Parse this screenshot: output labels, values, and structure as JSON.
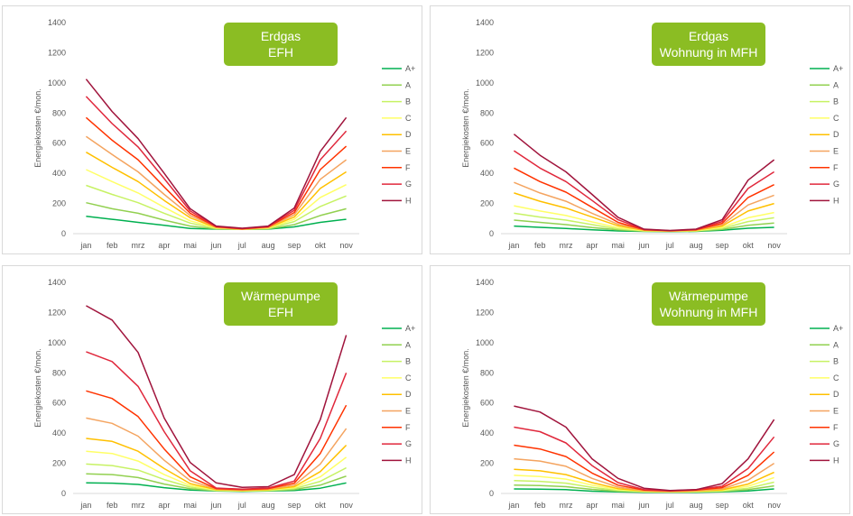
{
  "chart_data": [
    {
      "type": "line",
      "title": "Erdgas\nEFH",
      "ylabel": "Energiekosten €/mon.",
      "ylim": [
        0,
        1400
      ],
      "yticks": [
        0,
        200,
        400,
        600,
        800,
        1000,
        1200,
        1400
      ],
      "categories": [
        "jan",
        "feb",
        "mrz",
        "apr",
        "mai",
        "jun",
        "jul",
        "aug",
        "sep",
        "okt",
        "nov"
      ],
      "legend": "right",
      "series": [
        {
          "name": "A+",
          "color": "#00b050",
          "values": [
            115,
            95,
            75,
            55,
            35,
            30,
            28,
            30,
            45,
            75,
            95
          ]
        },
        {
          "name": "A",
          "color": "#92d050",
          "values": [
            205,
            165,
            135,
            90,
            50,
            32,
            28,
            32,
            60,
            120,
            165
          ]
        },
        {
          "name": "B",
          "color": "#c7f264",
          "values": [
            320,
            260,
            205,
            135,
            70,
            35,
            28,
            35,
            80,
            180,
            250
          ]
        },
        {
          "name": "C",
          "color": "#ffff66",
          "values": [
            425,
            345,
            270,
            175,
            85,
            38,
            28,
            38,
            95,
            240,
            325
          ]
        },
        {
          "name": "D",
          "color": "#ffc000",
          "values": [
            540,
            440,
            345,
            220,
            105,
            40,
            30,
            40,
            110,
            300,
            410
          ]
        },
        {
          "name": "E",
          "color": "#f4a460",
          "values": [
            645,
            525,
            410,
            260,
            120,
            42,
            30,
            42,
            125,
            360,
            490
          ]
        },
        {
          "name": "F",
          "color": "#ff3300",
          "values": [
            770,
            620,
            490,
            310,
            135,
            45,
            32,
            45,
            140,
            425,
            580
          ]
        },
        {
          "name": "G",
          "color": "#e0283c",
          "values": [
            910,
            730,
            575,
            365,
            150,
            48,
            34,
            48,
            155,
            490,
            680
          ]
        },
        {
          "name": "H",
          "color": "#a0143c",
          "values": [
            1025,
            810,
            630,
            400,
            165,
            50,
            36,
            50,
            170,
            545,
            770
          ]
        }
      ]
    },
    {
      "type": "line",
      "title": "Erdgas\nWohnung in MFH",
      "ylabel": "Energiekosten €/mon.",
      "ylim": [
        0,
        1400
      ],
      "yticks": [
        0,
        200,
        400,
        600,
        800,
        1000,
        1200,
        1400
      ],
      "categories": [
        "jan",
        "feb",
        "mrz",
        "apr",
        "mai",
        "jun",
        "jul",
        "aug",
        "sep",
        "okt",
        "nov"
      ],
      "legend": "right",
      "series": [
        {
          "name": "A+",
          "color": "#00b050",
          "values": [
            50,
            42,
            35,
            25,
            18,
            15,
            14,
            15,
            22,
            36,
            42
          ]
        },
        {
          "name": "A",
          "color": "#92d050",
          "values": [
            90,
            75,
            60,
            40,
            25,
            17,
            15,
            17,
            28,
            55,
            70
          ]
        },
        {
          "name": "B",
          "color": "#c7f264",
          "values": [
            135,
            110,
            90,
            60,
            32,
            19,
            16,
            19,
            35,
            80,
            105
          ]
        },
        {
          "name": "C",
          "color": "#ffff66",
          "values": [
            185,
            150,
            120,
            78,
            40,
            20,
            16,
            20,
            42,
            105,
            140
          ]
        },
        {
          "name": "D",
          "color": "#ffc000",
          "values": [
            270,
            215,
            170,
            110,
            52,
            22,
            17,
            22,
            50,
            150,
            200
          ]
        },
        {
          "name": "E",
          "color": "#f4a460",
          "values": [
            340,
            270,
            215,
            135,
            62,
            24,
            18,
            24,
            58,
            190,
            255
          ]
        },
        {
          "name": "F",
          "color": "#ff3300",
          "values": [
            435,
            345,
            275,
            175,
            75,
            26,
            19,
            26,
            68,
            240,
            325
          ]
        },
        {
          "name": "G",
          "color": "#e0283c",
          "values": [
            550,
            435,
            345,
            220,
            92,
            28,
            20,
            28,
            80,
            300,
            410
          ]
        },
        {
          "name": "H",
          "color": "#a0143c",
          "values": [
            660,
            520,
            410,
            260,
            108,
            30,
            21,
            30,
            92,
            355,
            490
          ]
        }
      ]
    },
    {
      "type": "line",
      "title": "Wärmepumpe\nEFH",
      "ylabel": "Energiekosten €/mon.",
      "ylim": [
        0,
        1400
      ],
      "yticks": [
        0,
        200,
        400,
        600,
        800,
        1000,
        1200,
        1400
      ],
      "categories": [
        "jan",
        "feb",
        "mrz",
        "apr",
        "mai",
        "jun",
        "jul",
        "aug",
        "sep",
        "okt",
        "nov"
      ],
      "legend": "right",
      "series": [
        {
          "name": "A+",
          "color": "#00b050",
          "values": [
            70,
            68,
            60,
            38,
            22,
            16,
            14,
            16,
            20,
            35,
            70
          ]
        },
        {
          "name": "A",
          "color": "#92d050",
          "values": [
            130,
            125,
            105,
            62,
            32,
            18,
            16,
            18,
            25,
            55,
            115
          ]
        },
        {
          "name": "B",
          "color": "#c7f264",
          "values": [
            195,
            185,
            155,
            92,
            42,
            20,
            17,
            20,
            32,
            80,
            170
          ]
        },
        {
          "name": "C",
          "color": "#ffff66",
          "values": [
            280,
            265,
            215,
            125,
            52,
            22,
            18,
            22,
            38,
            110,
            240
          ]
        },
        {
          "name": "D",
          "color": "#ffc000",
          "values": [
            365,
            345,
            280,
            165,
            65,
            25,
            20,
            25,
            45,
            145,
            320
          ]
        },
        {
          "name": "E",
          "color": "#f4a460",
          "values": [
            500,
            465,
            380,
            220,
            85,
            28,
            22,
            28,
            55,
            195,
            430
          ]
        },
        {
          "name": "F",
          "color": "#ff3300",
          "values": [
            680,
            630,
            510,
            295,
            110,
            32,
            25,
            32,
            68,
            265,
            585
          ]
        },
        {
          "name": "G",
          "color": "#e0283c",
          "values": [
            940,
            875,
            710,
            410,
            150,
            36,
            28,
            36,
            82,
            365,
            800
          ]
        },
        {
          "name": "H",
          "color": "#a0143c",
          "values": [
            1245,
            1150,
            935,
            500,
            205,
            70,
            40,
            45,
            125,
            490,
            1050
          ]
        }
      ]
    },
    {
      "type": "line",
      "title": "Wärmepumpe\nWohnung in MFH",
      "ylabel": "Energiekosten €/mon.",
      "ylim": [
        0,
        1400
      ],
      "yticks": [
        0,
        200,
        400,
        600,
        800,
        1000,
        1200,
        1400
      ],
      "categories": [
        "jan",
        "feb",
        "mrz",
        "apr",
        "mai",
        "jun",
        "jul",
        "aug",
        "sep",
        "okt",
        "nov"
      ],
      "legend": "right",
      "series": [
        {
          "name": "A+",
          "color": "#00b050",
          "values": [
            30,
            28,
            25,
            15,
            10,
            8,
            7,
            8,
            10,
            16,
            30
          ]
        },
        {
          "name": "A",
          "color": "#92d050",
          "values": [
            55,
            52,
            45,
            27,
            15,
            10,
            9,
            10,
            13,
            25,
            50
          ]
        },
        {
          "name": "B",
          "color": "#c7f264",
          "values": [
            85,
            80,
            68,
            40,
            20,
            12,
            10,
            12,
            16,
            35,
            75
          ]
        },
        {
          "name": "C",
          "color": "#ffff66",
          "values": [
            120,
            112,
            95,
            55,
            26,
            14,
            11,
            14,
            20,
            48,
            105
          ]
        },
        {
          "name": "D",
          "color": "#ffc000",
          "values": [
            160,
            150,
            125,
            72,
            32,
            16,
            12,
            16,
            24,
            62,
            140
          ]
        },
        {
          "name": "E",
          "color": "#f4a460",
          "values": [
            230,
            215,
            180,
            100,
            42,
            18,
            14,
            18,
            30,
            88,
            200
          ]
        },
        {
          "name": "F",
          "color": "#ff3300",
          "values": [
            320,
            295,
            245,
            135,
            55,
            22,
            16,
            22,
            38,
            120,
            275
          ]
        },
        {
          "name": "G",
          "color": "#e0283c",
          "values": [
            440,
            410,
            335,
            185,
            72,
            26,
            18,
            26,
            48,
            165,
            375
          ]
        },
        {
          "name": "H",
          "color": "#a0143c",
          "values": [
            580,
            540,
            440,
            230,
            100,
            35,
            20,
            25,
            65,
            230,
            490
          ]
        }
      ]
    }
  ]
}
